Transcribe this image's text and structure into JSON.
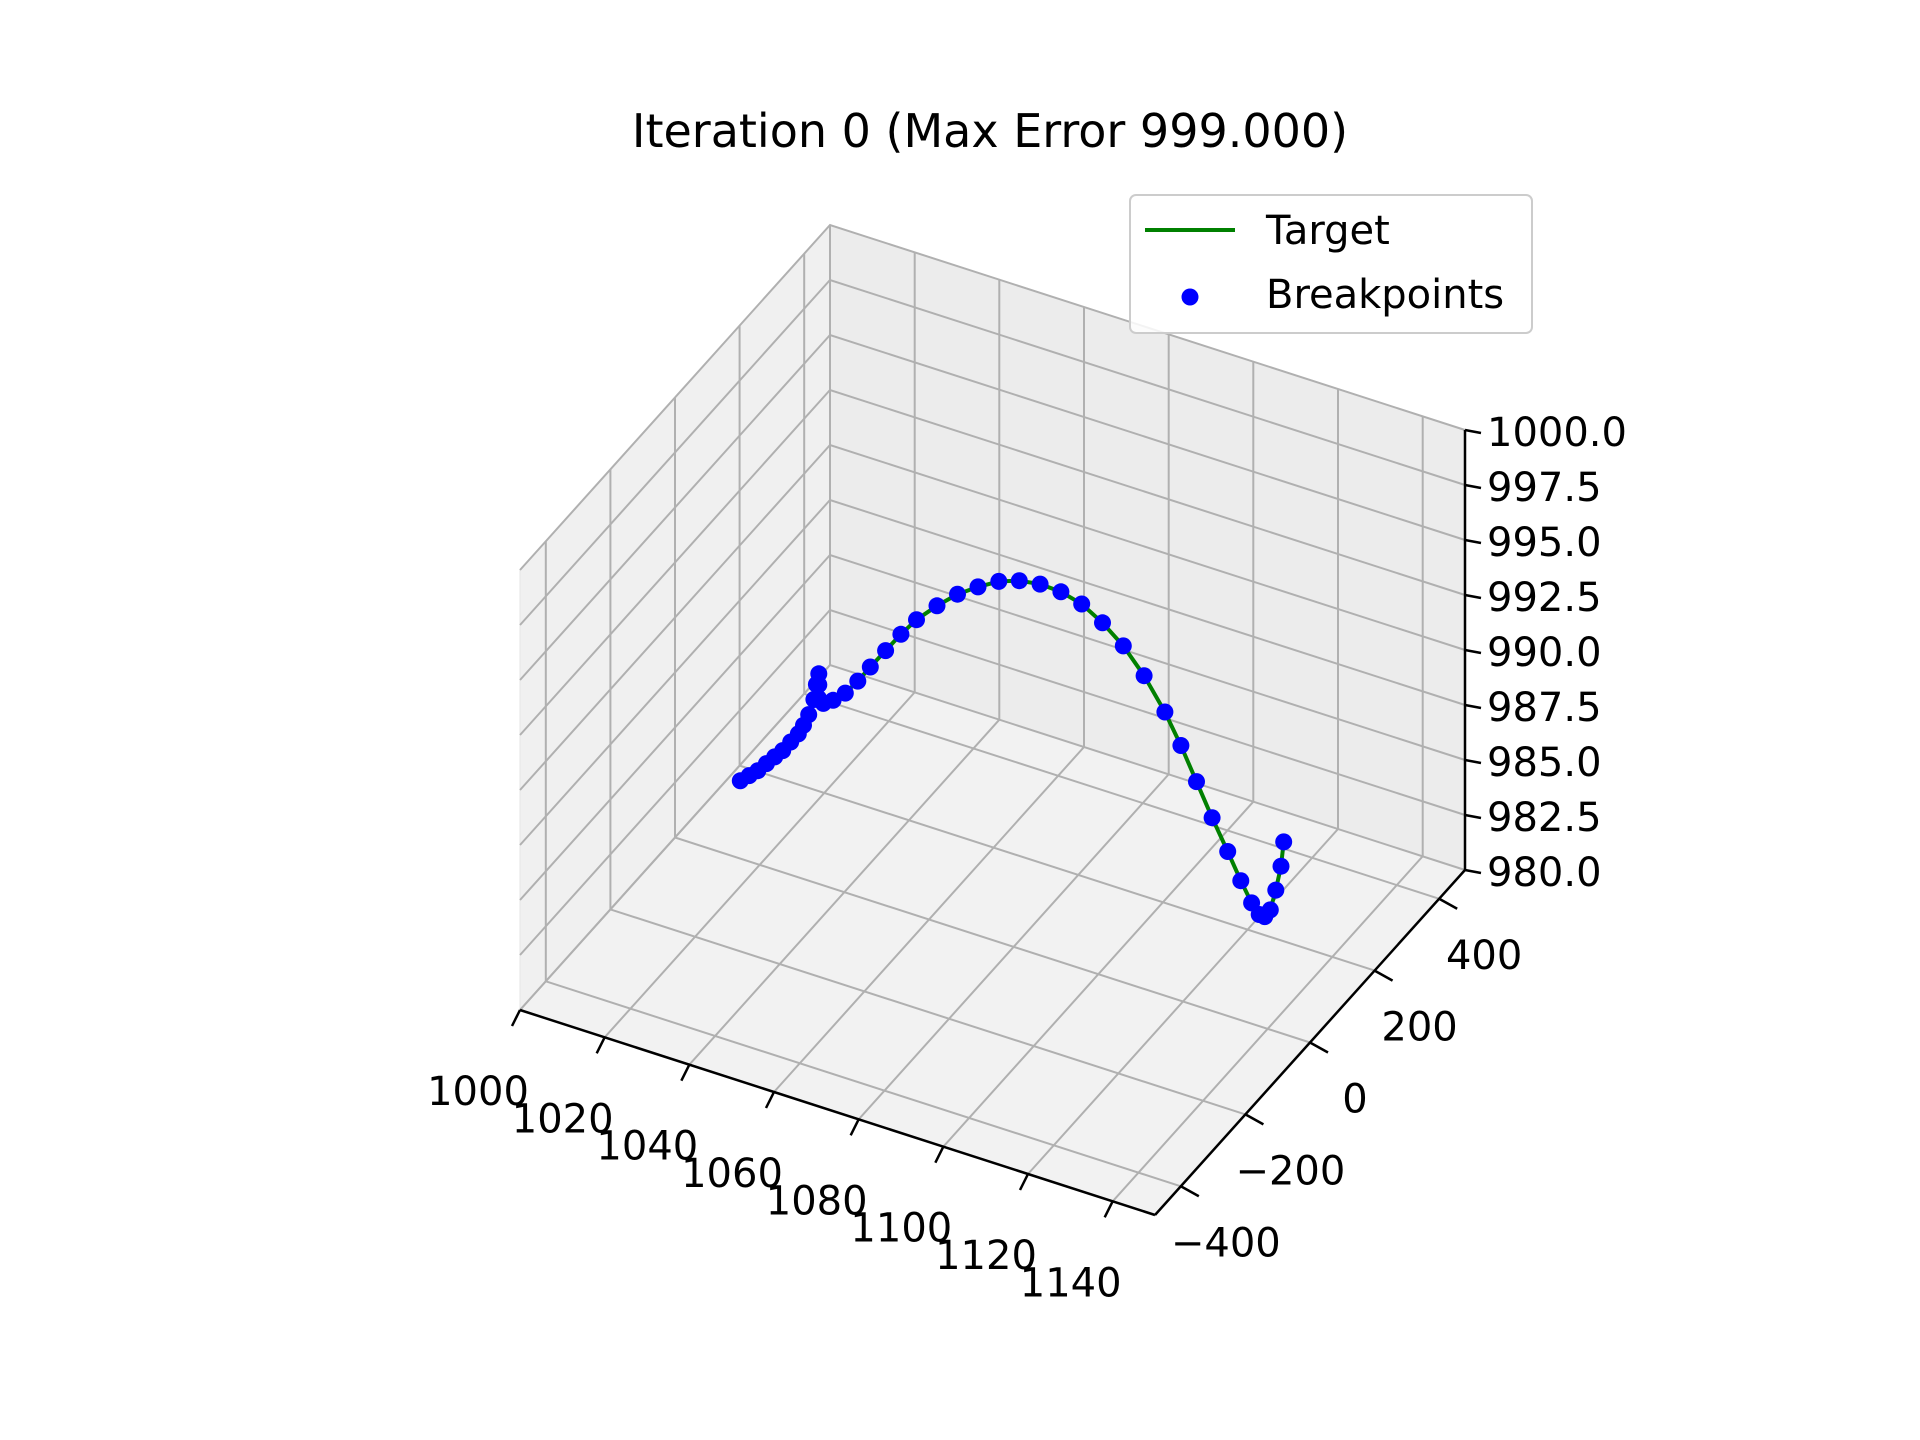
{
  "chart_data": {
    "type": "line",
    "projection": "3d",
    "title": "Iteration 0 (Max Error 999.000)",
    "xlabel": "",
    "ylabel": "",
    "zlabel": "",
    "xlim": [
      1000,
      1150
    ],
    "ylim": [
      -480,
      480
    ],
    "zlim": [
      980,
      1000
    ],
    "x_ticks": [
      "1000",
      "1020",
      "1040",
      "1060",
      "1080",
      "1100",
      "1120",
      "1140"
    ],
    "y_ticks": [
      "−400",
      "−200",
      "0",
      "200",
      "400"
    ],
    "z_ticks": [
      "980.0",
      "982.5",
      "985.0",
      "987.5",
      "990.0",
      "992.5",
      "995.0",
      "997.5",
      "1000.0"
    ],
    "grid": true,
    "legend": {
      "placement": "top-right",
      "entries": [
        {
          "label": "Target",
          "style": "line",
          "color": "#008000"
        },
        {
          "label": "Breakpoints",
          "style": "marker",
          "color": "#0000ff"
        }
      ]
    },
    "series": [
      {
        "name": "Target",
        "style": "line",
        "color": "#008000",
        "points": [
          [
            1020.0,
            -60,
            984.8
          ],
          [
            1021.5,
            -52,
            985.0
          ],
          [
            1023.0,
            -45,
            985.2
          ],
          [
            1024.5,
            -38,
            985.5
          ],
          [
            1026.0,
            -32,
            985.8
          ],
          [
            1027.5,
            -27,
            986.1
          ],
          [
            1029.0,
            -22,
            986.5
          ],
          [
            1030.5,
            -18,
            986.9
          ],
          [
            1031.5,
            -15,
            987.3
          ],
          [
            1032.5,
            -12,
            987.8
          ],
          [
            1033.5,
            -9,
            988.5
          ],
          [
            1034.0,
            -8,
            989.2
          ],
          [
            1034.5,
            -7,
            989.7
          ],
          [
            1034.5,
            -7,
            989.2
          ],
          [
            1034.5,
            -8,
            988.6
          ],
          [
            1035.5,
            -6,
            988.4
          ],
          [
            1037.5,
            -2,
            988.6
          ],
          [
            1040.0,
            3,
            989.0
          ],
          [
            1042.5,
            9,
            989.6
          ],
          [
            1045.0,
            15,
            990.3
          ],
          [
            1048.0,
            23,
            991.1
          ],
          [
            1051.0,
            31,
            991.9
          ],
          [
            1054.0,
            40,
            992.6
          ],
          [
            1058.0,
            51,
            993.3
          ],
          [
            1062.0,
            62,
            993.9
          ],
          [
            1066.0,
            73,
            994.3
          ],
          [
            1070.0,
            85,
            994.6
          ],
          [
            1074.0,
            96,
            994.7
          ],
          [
            1078.0,
            108,
            994.6
          ],
          [
            1082.0,
            120,
            994.3
          ],
          [
            1086.0,
            132,
            993.8
          ],
          [
            1090.0,
            144,
            993.0
          ],
          [
            1094.0,
            156,
            992.0
          ],
          [
            1098.0,
            168,
            990.7
          ],
          [
            1102.0,
            180,
            989.1
          ],
          [
            1105.0,
            190,
            987.6
          ],
          [
            1108.0,
            199,
            986.0
          ],
          [
            1111.0,
            208,
            984.4
          ],
          [
            1114.0,
            217,
            982.9
          ],
          [
            1116.5,
            225,
            981.6
          ],
          [
            1118.5,
            232,
            980.6
          ],
          [
            1120.0,
            236,
            980.1
          ],
          [
            1121.0,
            240,
            980.0
          ],
          [
            1122.0,
            244,
            980.3
          ],
          [
            1123.0,
            248,
            981.2
          ],
          [
            1124.0,
            251,
            982.3
          ],
          [
            1124.5,
            253,
            983.4
          ]
        ]
      },
      {
        "name": "Breakpoints",
        "style": "marker",
        "color": "#0000ff",
        "points": [
          [
            1020.0,
            -60,
            984.8
          ],
          [
            1021.5,
            -52,
            985.0
          ],
          [
            1023.0,
            -45,
            985.2
          ],
          [
            1024.5,
            -38,
            985.5
          ],
          [
            1026.0,
            -32,
            985.8
          ],
          [
            1027.5,
            -27,
            986.1
          ],
          [
            1029.0,
            -22,
            986.5
          ],
          [
            1030.5,
            -18,
            986.9
          ],
          [
            1031.5,
            -15,
            987.3
          ],
          [
            1032.5,
            -12,
            987.8
          ],
          [
            1033.5,
            -9,
            988.5
          ],
          [
            1034.0,
            -8,
            989.2
          ],
          [
            1034.5,
            -7,
            989.7
          ],
          [
            1034.5,
            -7,
            989.2
          ],
          [
            1034.5,
            -8,
            988.6
          ],
          [
            1035.5,
            -6,
            988.4
          ],
          [
            1037.5,
            -2,
            988.6
          ],
          [
            1040.0,
            3,
            989.0
          ],
          [
            1042.5,
            9,
            989.6
          ],
          [
            1045.0,
            15,
            990.3
          ],
          [
            1048.0,
            23,
            991.1
          ],
          [
            1051.0,
            31,
            991.9
          ],
          [
            1054.0,
            40,
            992.6
          ],
          [
            1058.0,
            51,
            993.3
          ],
          [
            1062.0,
            62,
            993.9
          ],
          [
            1066.0,
            73,
            994.3
          ],
          [
            1070.0,
            85,
            994.6
          ],
          [
            1074.0,
            96,
            994.7
          ],
          [
            1078.0,
            108,
            994.6
          ],
          [
            1082.0,
            120,
            994.3
          ],
          [
            1086.0,
            132,
            993.8
          ],
          [
            1090.0,
            144,
            993.0
          ],
          [
            1094.0,
            156,
            992.0
          ],
          [
            1098.0,
            168,
            990.7
          ],
          [
            1102.0,
            180,
            989.1
          ],
          [
            1105.0,
            190,
            987.6
          ],
          [
            1108.0,
            199,
            986.0
          ],
          [
            1111.0,
            208,
            984.4
          ],
          [
            1114.0,
            217,
            982.9
          ],
          [
            1116.5,
            225,
            981.6
          ],
          [
            1118.5,
            232,
            980.6
          ],
          [
            1120.0,
            236,
            980.1
          ],
          [
            1121.0,
            240,
            980.0
          ],
          [
            1122.0,
            244,
            980.3
          ],
          [
            1123.0,
            248,
            981.2
          ],
          [
            1124.0,
            251,
            982.3
          ],
          [
            1124.5,
            253,
            983.4
          ]
        ]
      }
    ]
  }
}
